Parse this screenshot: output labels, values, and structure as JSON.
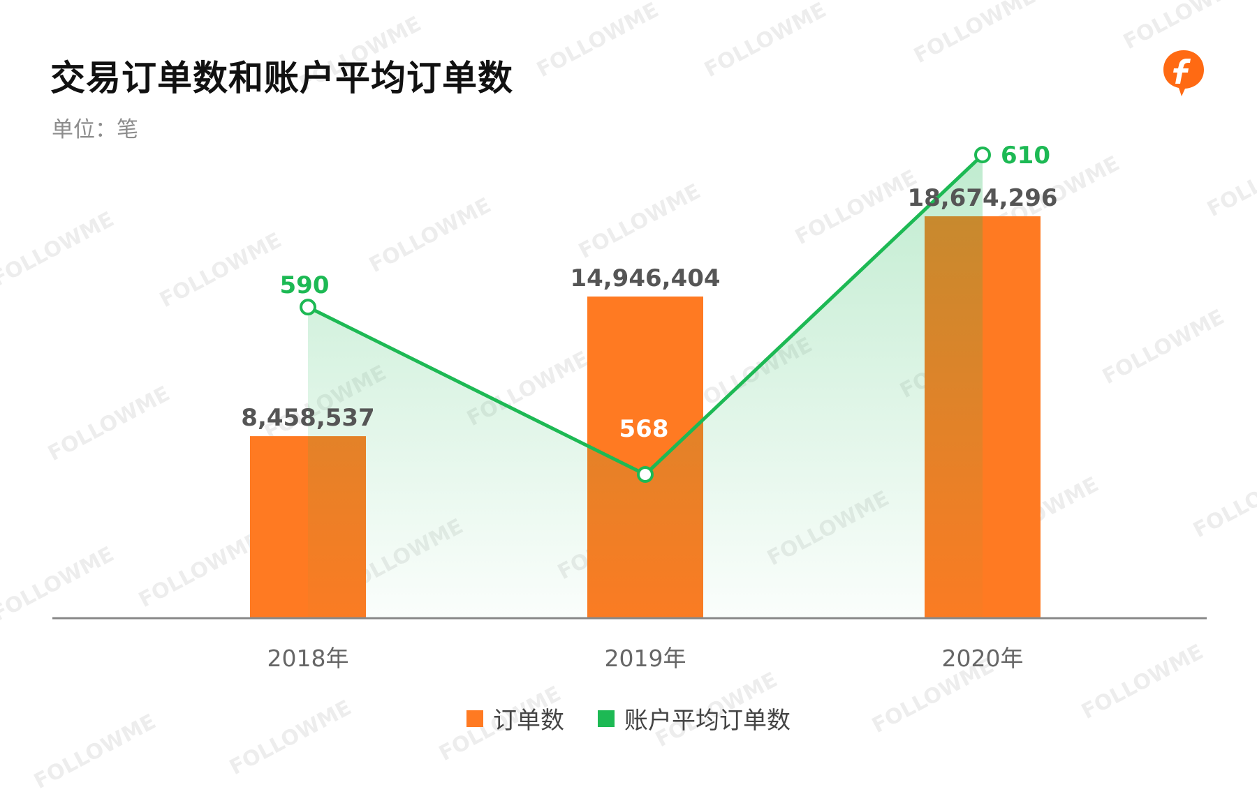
{
  "title": "交易订单数和账户平均订单数",
  "unit_label": "单位：笔",
  "watermark_text": "FOLLOWME",
  "colors": {
    "bar": "#FF7A22",
    "line": "#1DB954",
    "line_label": "#1DB954",
    "bar_label": "#555555",
    "axis": "#888888",
    "logo": "#FF6A13"
  },
  "chart_data": {
    "type": "bar",
    "categories": [
      "2018年",
      "2019年",
      "2020年"
    ],
    "series": [
      {
        "name": "订单数",
        "type": "bar",
        "values": [
          8458537,
          14946404,
          18674296
        ],
        "labels": [
          "8,458,537",
          "14,946,404",
          "18,674,296"
        ]
      },
      {
        "name": "账户平均订单数",
        "type": "line",
        "values": [
          590,
          568,
          610
        ],
        "labels": [
          "590",
          "568",
          "610"
        ]
      }
    ],
    "title": "交易订单数和账户平均订单数",
    "unit": "单位：笔",
    "legend_position": "bottom",
    "grid": false
  }
}
